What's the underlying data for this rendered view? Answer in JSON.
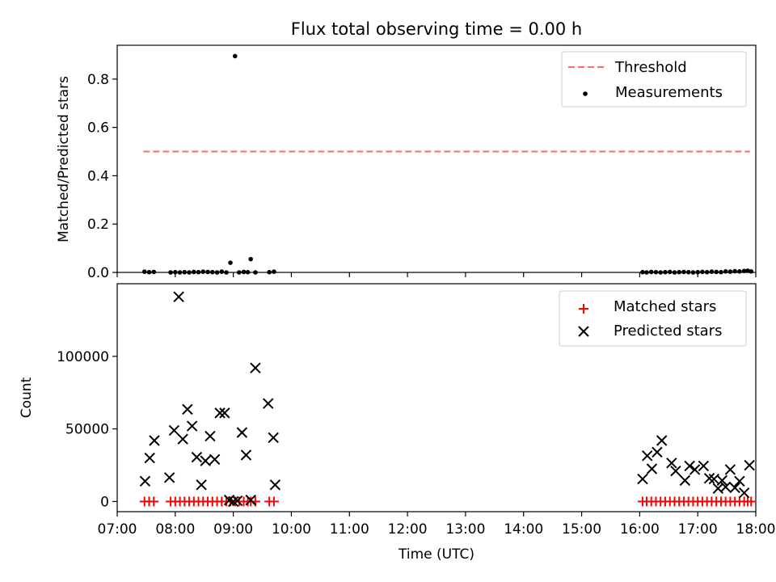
{
  "chart_data": [
    {
      "type": "scatter",
      "title": "Flux total observing time = 0.00 h",
      "xlabel": "",
      "ylabel": "Matched/Predicted stars",
      "xlim": [
        7.0,
        18.0
      ],
      "ylim": [
        0,
        0.94
      ],
      "yticks": [
        {
          "v": 0.0,
          "label": "0.0"
        },
        {
          "v": 0.2,
          "label": "0.2"
        },
        {
          "v": 0.4,
          "label": "0.4"
        },
        {
          "v": 0.6,
          "label": "0.6"
        },
        {
          "v": 0.8,
          "label": "0.8"
        }
      ],
      "legend_position": "upper-right",
      "threshold": {
        "name": "Threshold",
        "value": 0.5,
        "x_range": [
          7.45,
          17.9
        ],
        "color": "#ff6b6b"
      },
      "series": [
        {
          "name": "Measurements",
          "marker": "dot",
          "color": "#000000",
          "x": [
            7.47,
            7.55,
            7.63,
            7.92,
            8.0,
            8.08,
            8.16,
            8.24,
            8.32,
            8.4,
            8.48,
            8.56,
            8.64,
            8.72,
            8.8,
            8.88,
            8.95,
            9.03,
            9.1,
            9.18,
            9.25,
            9.3,
            9.38,
            9.62,
            9.7,
            16.05,
            16.12,
            16.2,
            16.28,
            16.36,
            16.44,
            16.52,
            16.6,
            16.68,
            16.76,
            16.84,
            16.92,
            17.0,
            17.08,
            17.16,
            17.24,
            17.32,
            17.4,
            17.48,
            17.56,
            17.64,
            17.72,
            17.8,
            17.86,
            17.92
          ],
          "y": [
            0.003,
            0.001,
            0.002,
            0.0,
            0.001,
            0.0,
            0.001,
            0.0,
            0.002,
            0.001,
            0.003,
            0.002,
            0.001,
            0.0,
            0.003,
            0.0,
            0.04,
            0.895,
            0.0,
            0.002,
            0.001,
            0.055,
            0.0,
            0.001,
            0.003,
            0.001,
            0.0,
            0.002,
            0.001,
            0.0,
            0.001,
            0.002,
            0.0,
            0.001,
            0.002,
            0.001,
            0.0,
            0.001,
            0.002,
            0.001,
            0.003,
            0.002,
            0.001,
            0.004,
            0.003,
            0.005,
            0.004,
            0.006,
            0.007,
            0.004
          ]
        }
      ]
    },
    {
      "type": "scatter",
      "title": "",
      "xlabel": "Time (UTC)",
      "ylabel": "Count",
      "xlim": [
        7.0,
        18.0
      ],
      "ylim": [
        -7000,
        150000
      ],
      "yticks": [
        {
          "v": 0,
          "label": "0"
        },
        {
          "v": 50000,
          "label": "50000"
        },
        {
          "v": 100000,
          "label": "100000"
        }
      ],
      "xticks": [
        {
          "v": 7,
          "label": "07:00"
        },
        {
          "v": 8,
          "label": "08:00"
        },
        {
          "v": 9,
          "label": "09:00"
        },
        {
          "v": 10,
          "label": "10:00"
        },
        {
          "v": 11,
          "label": "11:00"
        },
        {
          "v": 12,
          "label": "12:00"
        },
        {
          "v": 13,
          "label": "13:00"
        },
        {
          "v": 14,
          "label": "14:00"
        },
        {
          "v": 15,
          "label": "15:00"
        },
        {
          "v": 16,
          "label": "16:00"
        },
        {
          "v": 17,
          "label": "17:00"
        },
        {
          "v": 18,
          "label": "18:00"
        }
      ],
      "legend_position": "upper-right",
      "series": [
        {
          "name": "Matched stars",
          "marker": "plus",
          "color": "#ff0000",
          "x": [
            7.47,
            7.55,
            7.63,
            7.92,
            8.0,
            8.08,
            8.16,
            8.24,
            8.32,
            8.4,
            8.48,
            8.56,
            8.64,
            8.72,
            8.8,
            8.88,
            8.95,
            9.03,
            9.1,
            9.18,
            9.25,
            9.3,
            9.38,
            9.62,
            9.7,
            16.05,
            16.12,
            16.2,
            16.28,
            16.36,
            16.44,
            16.52,
            16.6,
            16.68,
            16.76,
            16.84,
            16.92,
            17.0,
            17.08,
            17.16,
            17.24,
            17.32,
            17.4,
            17.48,
            17.56,
            17.64,
            17.72,
            17.8,
            17.86,
            17.92
          ],
          "y": [
            0,
            0,
            0,
            0,
            0,
            0,
            0,
            0,
            0,
            0,
            0,
            0,
            0,
            0,
            0,
            0,
            0,
            0,
            0,
            0,
            0,
            0,
            0,
            0,
            0,
            0,
            0,
            0,
            0,
            0,
            0,
            0,
            0,
            0,
            0,
            0,
            0,
            0,
            0,
            0,
            0,
            0,
            0,
            0,
            0,
            0,
            0,
            0,
            0,
            0
          ]
        },
        {
          "name": "Predicted stars",
          "marker": "x",
          "color": "#000000",
          "x": [
            7.48,
            7.56,
            7.64,
            7.9,
            7.98,
            8.06,
            8.13,
            8.21,
            8.29,
            8.37,
            8.45,
            8.52,
            8.6,
            8.68,
            8.77,
            8.85,
            8.93,
            9.0,
            9.07,
            9.15,
            9.22,
            9.3,
            9.38,
            9.6,
            9.69,
            9.72,
            16.05,
            16.13,
            16.21,
            16.3,
            16.38,
            16.55,
            16.62,
            16.78,
            16.86,
            16.95,
            17.1,
            17.2,
            17.28,
            17.35,
            17.42,
            17.48,
            17.56,
            17.64,
            17.72,
            17.8,
            17.89
          ],
          "y": [
            14000,
            30000,
            42000,
            16500,
            49000,
            141000,
            43000,
            63500,
            52000,
            30500,
            11500,
            28000,
            45000,
            29000,
            61000,
            61000,
            1000,
            0,
            500,
            47500,
            32000,
            1000,
            92000,
            67500,
            44000,
            11500,
            15500,
            31500,
            22500,
            34000,
            42000,
            26500,
            21000,
            14500,
            24500,
            22000,
            24500,
            16000,
            15500,
            9000,
            14500,
            10000,
            22000,
            9500,
            14000,
            6000,
            25000
          ]
        }
      ]
    }
  ]
}
